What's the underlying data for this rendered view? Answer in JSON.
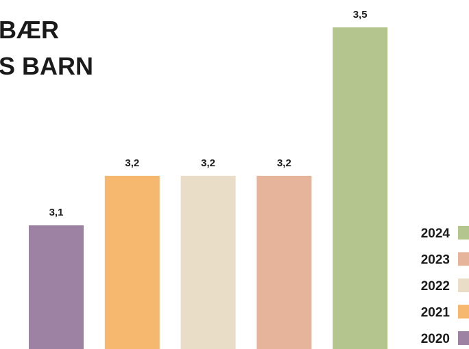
{
  "chart_data": {
    "type": "bar",
    "title": [
      "BÆR",
      "S BARN"
    ],
    "categories": [
      "2020",
      "2021",
      "2022",
      "2023",
      "2024"
    ],
    "values": [
      3.1,
      3.2,
      3.2,
      3.2,
      3.5
    ],
    "value_labels": [
      "3,1",
      "3,2",
      "3,2",
      "3,2",
      "3,5"
    ],
    "colors": [
      "#9e82a3",
      "#f6b86e",
      "#eaddc8",
      "#e6b49a",
      "#b5c58e"
    ],
    "ylim": [
      2.85,
      3.5
    ],
    "legend": "bottom-right"
  }
}
